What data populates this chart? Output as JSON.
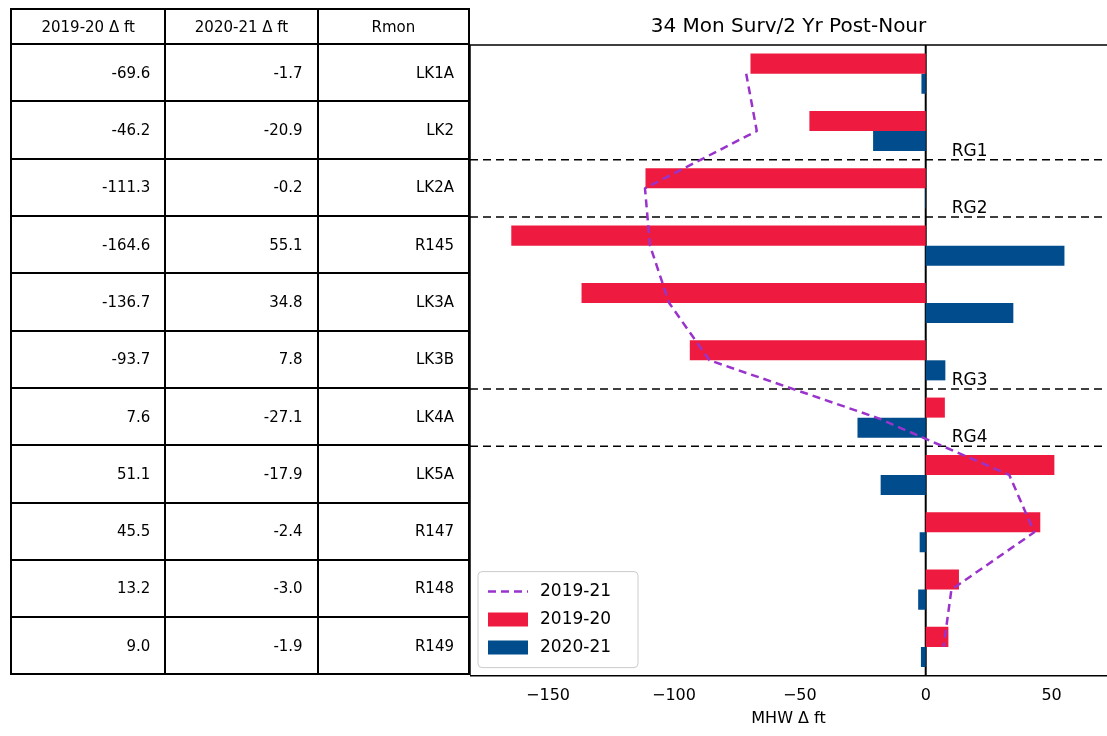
{
  "chart_data": {
    "type": "bar",
    "orientation": "horizontal",
    "title": "34 Mon Surv/2 Yr Post-Nour",
    "xlabel": "MHW Δ ft",
    "categories": [
      "LK1A",
      "LK2",
      "LK2A",
      "R145",
      "LK3A",
      "LK3B",
      "LK4A",
      "LK5A",
      "R147",
      "R148",
      "R149"
    ],
    "series": [
      {
        "name": "2019-21",
        "type": "line",
        "line_style": "dashed",
        "color": "#9933cc",
        "values": [
          -71.3,
          -67.1,
          -111.5,
          -109.5,
          -101.9,
          -85.9,
          -19.5,
          33.2,
          43.1,
          10.2,
          7.1
        ]
      },
      {
        "name": "2019-20",
        "color": "#ee1a3f",
        "values": [
          -69.6,
          -46.2,
          -111.3,
          -164.6,
          -136.7,
          -93.7,
          7.6,
          51.1,
          45.5,
          13.2,
          9.0
        ],
        "value_labels": [
          "-69.6",
          "-46.2",
          "-111.3",
          "-164.6",
          "-136.7",
          "-93.7",
          "7.6",
          "51.1",
          "45.5",
          "13.2",
          "9.0"
        ]
      },
      {
        "name": "2020-21",
        "color": "#004c8c",
        "values": [
          -1.7,
          -20.9,
          -0.2,
          55.1,
          34.8,
          7.8,
          -27.1,
          -17.9,
          -2.4,
          -3.0,
          -1.9
        ],
        "value_labels": [
          "-1.7",
          "-20.9",
          "-0.2",
          "55.1",
          "34.8",
          "7.8",
          "-27.1",
          "-17.9",
          "-2.4",
          "-3.0",
          "-1.9"
        ]
      }
    ],
    "xlim": [
      -181,
      72
    ],
    "xticks": [
      -150,
      -100,
      -50,
      0,
      50
    ],
    "ref_lines": [
      {
        "axis": "x",
        "value": 0,
        "color": "#000000",
        "line_style": "solid"
      }
    ],
    "annotations": [
      "2019-20 Δ ft",
      "2020-21 Δ ft",
      "Rmon",
      "RG1",
      "RG2",
      "RG3",
      "RG4"
    ],
    "legend": "bottom left",
    "tick_labels": "x"
  }
}
